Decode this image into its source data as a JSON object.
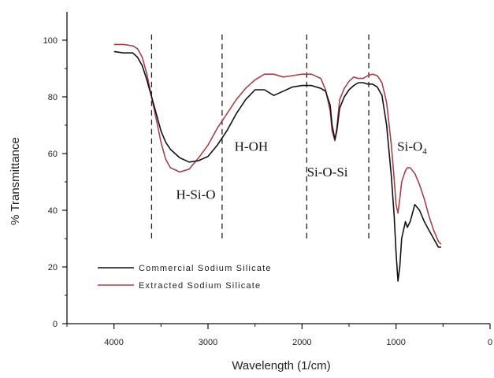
{
  "chart_data": {
    "type": "line",
    "xlabel": "Wavelength (1/cm)",
    "ylabel": "% Transmittance",
    "xlim": [
      4500,
      0
    ],
    "ylim": [
      0,
      110
    ],
    "x_ticks": [
      4000,
      3000,
      2000,
      1000,
      0
    ],
    "y_ticks": [
      0,
      20,
      40,
      60,
      80,
      100
    ],
    "grid": false,
    "legend_position": "bottom-left",
    "vlines": [
      3600,
      2850,
      1950,
      1290
    ],
    "annotations": [
      {
        "text": "H-Si-O",
        "x": 3130,
        "y": 44
      },
      {
        "text": "H-OH",
        "x": 2540,
        "y": 61
      },
      {
        "text": "Si-O-Si",
        "x": 1730,
        "y": 52
      },
      {
        "text": "Si-O",
        "sub": "4",
        "x": 830,
        "y": 61
      }
    ],
    "series": [
      {
        "name": "Commercial Sodium Silicate",
        "color": "#111111",
        "x": [
          4000,
          3900,
          3800,
          3750,
          3700,
          3650,
          3600,
          3550,
          3500,
          3450,
          3400,
          3300,
          3200,
          3100,
          3000,
          2900,
          2800,
          2700,
          2600,
          2500,
          2400,
          2300,
          2200,
          2100,
          2000,
          1900,
          1800,
          1750,
          1700,
          1680,
          1650,
          1630,
          1600,
          1550,
          1500,
          1450,
          1400,
          1350,
          1300,
          1250,
          1200,
          1150,
          1100,
          1050,
          1020,
          1000,
          980,
          960,
          940,
          900,
          880,
          850,
          800,
          750,
          700,
          650,
          600,
          550,
          520
        ],
        "y": [
          96,
          95.5,
          95.5,
          94,
          91,
          86,
          80,
          74,
          68,
          64,
          61.5,
          58.5,
          57,
          57.5,
          59,
          63,
          68,
          74,
          79,
          82.5,
          82.5,
          80.5,
          82,
          83.5,
          84,
          84,
          83,
          82,
          77,
          70,
          65,
          68,
          76,
          80,
          82.5,
          84,
          85,
          85,
          84.5,
          84.5,
          83.5,
          80.5,
          70,
          52,
          38,
          25,
          15,
          20,
          30,
          36,
          34,
          36,
          42,
          40,
          36,
          33,
          30,
          27,
          27
        ]
      },
      {
        "name": "Extracted Sodium Silicate",
        "color": "#a8404a",
        "x": [
          4000,
          3900,
          3800,
          3750,
          3700,
          3650,
          3600,
          3550,
          3500,
          3450,
          3400,
          3300,
          3200,
          3100,
          3000,
          2900,
          2800,
          2700,
          2600,
          2500,
          2400,
          2300,
          2200,
          2100,
          2000,
          1900,
          1800,
          1750,
          1700,
          1680,
          1650,
          1630,
          1600,
          1550,
          1500,
          1450,
          1400,
          1350,
          1300,
          1250,
          1200,
          1150,
          1100,
          1050,
          1020,
          1000,
          980,
          960,
          940,
          900,
          880,
          850,
          800,
          750,
          700,
          650,
          600,
          550,
          520
        ],
        "y": [
          98.5,
          98.5,
          98,
          97,
          94,
          88,
          80,
          72,
          64,
          58,
          55,
          53.5,
          54.5,
          58.5,
          63,
          69,
          74,
          79,
          83,
          86,
          88,
          88,
          87,
          87.5,
          88,
          88,
          86.5,
          82.5,
          75,
          68,
          64.5,
          69,
          79,
          83,
          85.5,
          87,
          86.5,
          86.5,
          87.5,
          88,
          87.5,
          85,
          78,
          63,
          51,
          42,
          39,
          44,
          50,
          54,
          55,
          55,
          53,
          49,
          44,
          38,
          33,
          29,
          28
        ]
      }
    ]
  }
}
